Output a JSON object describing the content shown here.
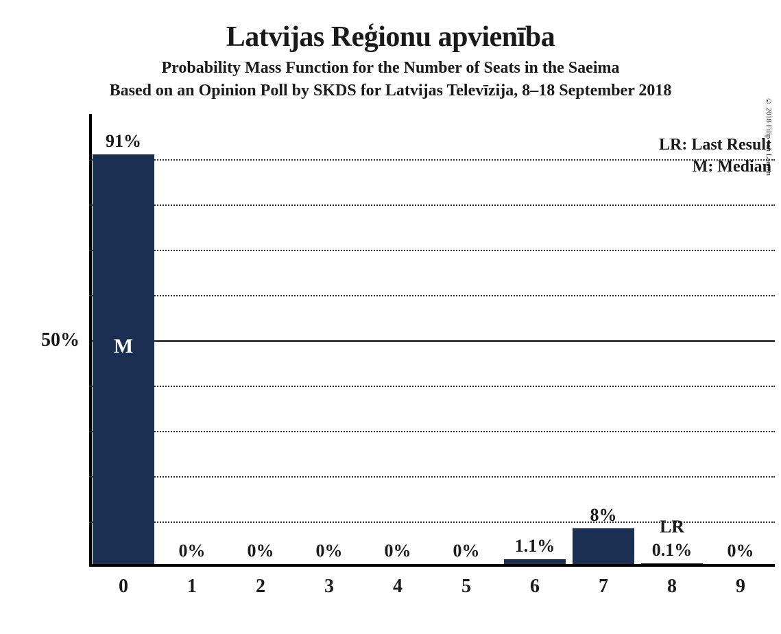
{
  "title": "Latvijas Reģionu apvienība",
  "subtitle1": "Probability Mass Function for the Number of Seats in the Saeima",
  "subtitle2": "Based on an Opinion Poll by SKDS for Latvijas Televīzija, 8–18 September 2018",
  "copyright": "© 2018 Filip van Laenen",
  "chart": {
    "type": "bar",
    "categories": [
      "0",
      "1",
      "2",
      "3",
      "4",
      "5",
      "6",
      "7",
      "8",
      "9"
    ],
    "values": [
      91,
      0,
      0,
      0,
      0,
      0,
      1.1,
      8,
      0.1,
      0
    ],
    "value_labels": [
      "91%",
      "0%",
      "0%",
      "0%",
      "0%",
      "0%",
      "1.1%",
      "8%",
      "0.1%",
      "0%"
    ],
    "bar_color": "#1a2f52",
    "background_color": "#ffffff",
    "grid_color": "#333333",
    "y_axis": {
      "ticks": [
        50
      ],
      "tick_labels": [
        "50%"
      ],
      "gridlines": [
        10,
        20,
        30,
        40,
        50,
        60,
        70,
        80,
        90
      ],
      "solid_gridline": 50,
      "max": 100
    },
    "median_index": 0,
    "median_label": "M",
    "last_result_index": 8,
    "last_result_label": "LR",
    "legend": {
      "lr": "LR: Last Result",
      "m": "M: Median"
    },
    "title_fontsize": 42,
    "subtitle_fontsize": 24,
    "axis_fontsize": 28,
    "label_fontsize": 26,
    "bar_width_ratio": 0.9
  }
}
